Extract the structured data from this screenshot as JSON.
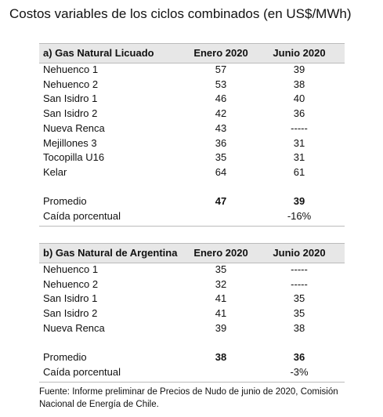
{
  "title": "Costos variables de los ciclos combinados (en US$/MWh)",
  "sections": [
    {
      "header": [
        "a) Gas Natural Licuado",
        "Enero 2020",
        "Junio 2020"
      ],
      "rows": [
        [
          "Nehuenco 1",
          57,
          39
        ],
        [
          "Nehuenco 2",
          53,
          38
        ],
        [
          "San Isidro 1",
          46,
          40
        ],
        [
          "San Isidro 2",
          42,
          36
        ],
        [
          "Nueva Renca",
          43,
          "-----"
        ],
        [
          "Mejillones 3",
          36,
          31
        ],
        [
          "Tocopilla U16",
          35,
          31
        ],
        [
          "Kelar",
          64,
          61
        ]
      ],
      "average": [
        "Promedio",
        47,
        39
      ],
      "drop": [
        "Caída porcentual",
        "-16%"
      ]
    },
    {
      "header": [
        "b) Gas Natural de Argentina",
        "Enero 2020",
        "Junio 2020"
      ],
      "rows": [
        [
          "Nehuenco 1",
          35,
          "-----"
        ],
        [
          "Nehuenco 2",
          32,
          "-----"
        ],
        [
          "San Isidro 1",
          41,
          35
        ],
        [
          "San Isidro 2",
          41,
          35
        ],
        [
          "Nueva Renca",
          39,
          38
        ]
      ],
      "average": [
        "Promedio",
        38,
        36
      ],
      "drop": [
        "Caída porcentual",
        "-3%"
      ]
    }
  ],
  "footnote": [
    "Fuente: Informe preliminar de Precios de Nudo de junio de 2020, Comisión",
    "Nacional de Energía de Chile."
  ]
}
